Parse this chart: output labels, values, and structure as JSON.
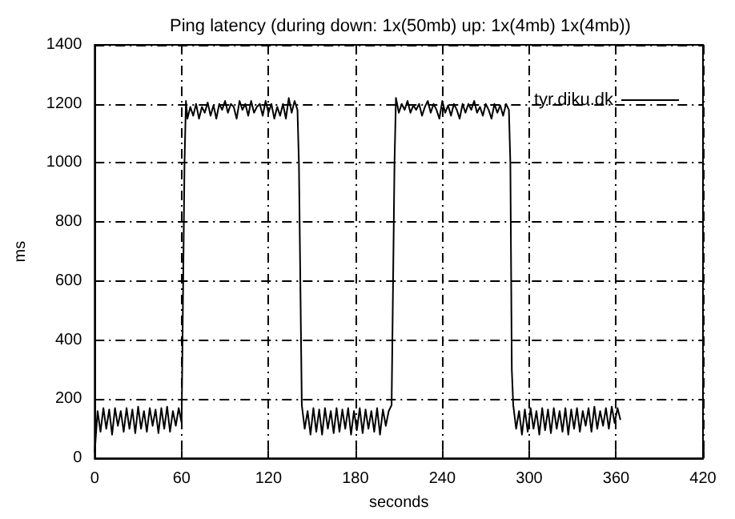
{
  "chart_data": {
    "type": "line",
    "title": "Ping latency (during down: 1x(50mb) up: 1x(4mb) 1x(4mb))",
    "xlabel": "seconds",
    "ylabel": "ms",
    "xlim": [
      0,
      420
    ],
    "xticks": [
      0,
      60,
      120,
      180,
      240,
      300,
      360,
      420
    ],
    "ylim": [
      0,
      1400
    ],
    "yticks": [
      0,
      200,
      400,
      600,
      800,
      1000,
      1200,
      1400
    ],
    "grid": true,
    "legend": "top right",
    "marker": "none",
    "line_style": "solid",
    "series": [
      {
        "name": "tyr.diku.dk",
        "color": "#000000",
        "x": [
          0,
          2,
          4,
          6,
          8,
          10,
          12,
          14,
          16,
          18,
          20,
          22,
          24,
          26,
          28,
          30,
          32,
          34,
          36,
          38,
          40,
          42,
          44,
          46,
          48,
          50,
          52,
          54,
          56,
          58,
          60,
          62,
          63,
          64,
          66,
          68,
          70,
          72,
          74,
          76,
          78,
          80,
          82,
          84,
          86,
          88,
          90,
          92,
          94,
          96,
          98,
          100,
          102,
          104,
          106,
          108,
          110,
          112,
          114,
          116,
          118,
          120,
          122,
          124,
          126,
          128,
          130,
          132,
          134,
          136,
          138,
          140,
          141,
          143,
          145,
          147,
          149,
          151,
          153,
          155,
          157,
          159,
          161,
          163,
          165,
          167,
          169,
          171,
          173,
          175,
          177,
          179,
          181,
          183,
          185,
          187,
          189,
          191,
          193,
          195,
          197,
          199,
          201,
          203,
          205,
          207,
          208,
          210,
          212,
          214,
          216,
          218,
          220,
          222,
          224,
          226,
          228,
          230,
          232,
          234,
          236,
          238,
          240,
          242,
          244,
          246,
          248,
          250,
          252,
          254,
          256,
          258,
          260,
          262,
          264,
          266,
          268,
          270,
          272,
          274,
          276,
          278,
          280,
          282,
          284,
          286,
          287,
          288,
          289,
          291,
          293,
          295,
          297,
          299,
          301,
          303,
          305,
          307,
          309,
          311,
          313,
          315,
          317,
          319,
          321,
          323,
          325,
          327,
          329,
          331,
          333,
          335,
          337,
          339,
          341,
          343,
          345,
          347,
          349,
          351,
          353,
          355,
          357,
          359,
          361,
          363
        ],
        "values": [
          20,
          160,
          90,
          170,
          100,
          165,
          80,
          170,
          110,
          160,
          90,
          170,
          100,
          165,
          85,
          175,
          100,
          160,
          90,
          170,
          110,
          165,
          85,
          170,
          100,
          175,
          90,
          160,
          110,
          170,
          120,
          1000,
          1210,
          1150,
          1190,
          1160,
          1200,
          1150,
          1190,
          1170,
          1205,
          1160,
          1195,
          1150,
          1200,
          1180,
          1210,
          1170,
          1200,
          1190,
          1150,
          1210,
          1180,
          1200,
          1160,
          1210,
          1170,
          1190,
          1200,
          1160,
          1210,
          1170,
          1200,
          1150,
          1190,
          1160,
          1200,
          1150,
          1220,
          1170,
          1210,
          1180,
          1000,
          180,
          100,
          160,
          80,
          170,
          90,
          165,
          80,
          170,
          100,
          160,
          85,
          170,
          90,
          165,
          100,
          170,
          80,
          160,
          95,
          170,
          85,
          165,
          100,
          160,
          90,
          170,
          80,
          165,
          110,
          160,
          180,
          1000,
          1220,
          1170,
          1200,
          1180,
          1210,
          1170,
          1195,
          1180,
          1200,
          1160,
          1190,
          1210,
          1170,
          1200,
          1180,
          1150,
          1210,
          1170,
          1195,
          1160,
          1200,
          1180,
          1150,
          1200,
          1170,
          1200,
          1180,
          1210,
          1170,
          1190,
          1160,
          1200,
          1180,
          1150,
          1200,
          1170,
          1195,
          1160,
          1200,
          1180,
          1000,
          300,
          180,
          100,
          160,
          80,
          165,
          90,
          170,
          100,
          160,
          80,
          170,
          95,
          165,
          85,
          170,
          100,
          160,
          90,
          170,
          80,
          165,
          100,
          170,
          90,
          160,
          110,
          170,
          90,
          175,
          100,
          160,
          110,
          170,
          100,
          175,
          120,
          170,
          130
        ]
      }
    ]
  }
}
